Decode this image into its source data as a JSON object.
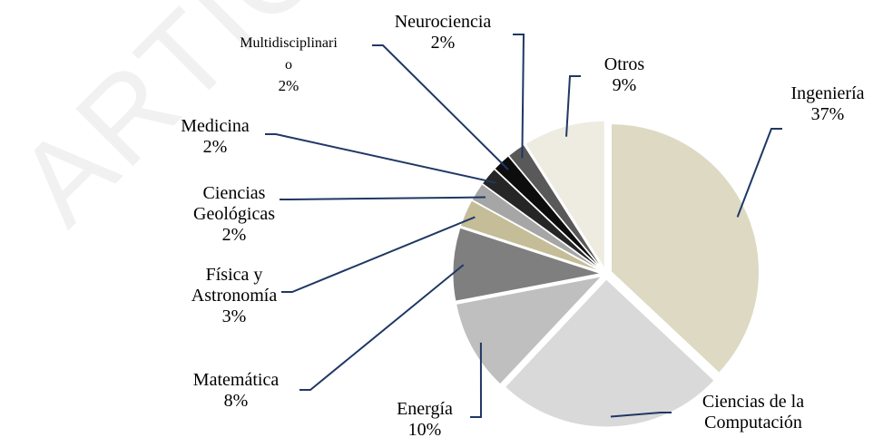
{
  "chart_data": {
    "type": "pie",
    "watermark": "ARTÍCU",
    "categories": [
      "Ingeniería",
      "Ciencias de la\nComputación",
      "Energía",
      "Matemática",
      "Física y\nAstronomía",
      "Ciencias\nGeológicas",
      "Medicina",
      "Multidisciplinari\no",
      "Neurociencia",
      "Otros"
    ],
    "values": [
      37,
      25,
      10,
      8,
      3,
      2,
      2,
      2,
      2,
      9
    ],
    "value_labels": [
      "37%",
      null,
      "10%",
      "8%",
      "3%",
      "2%",
      "2%",
      "2%",
      "2%",
      "9%"
    ],
    "colors": [
      "#ddd9c3",
      "#d9d9d9",
      "#bfbfbf",
      "#7f7f7f",
      "#c4bd97",
      "#a6a6a6",
      "#262626",
      "#0d0d0d",
      "#595959",
      "#eeece1"
    ]
  }
}
